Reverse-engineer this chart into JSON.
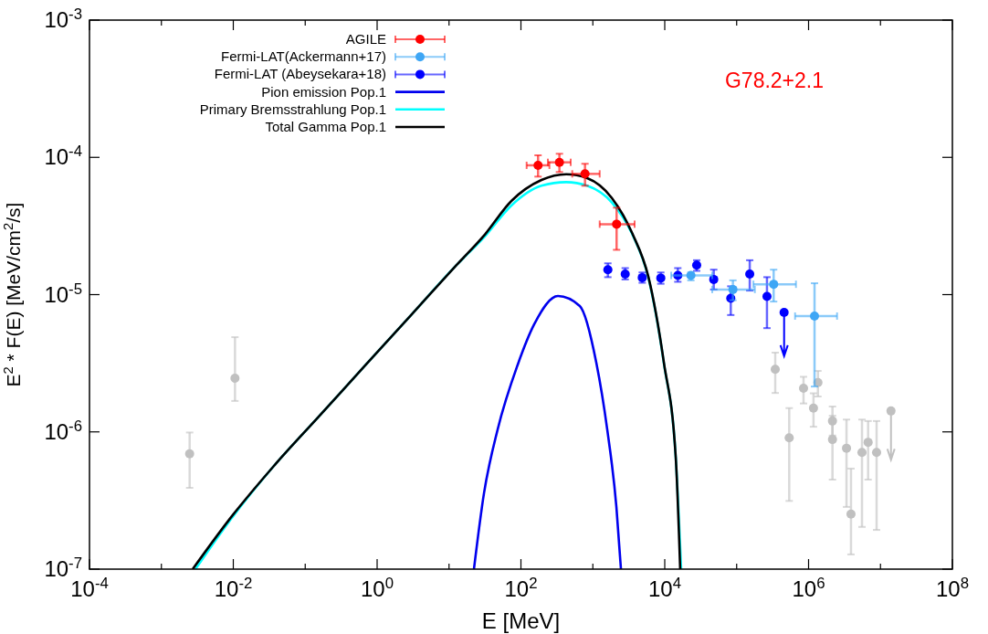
{
  "chart_data": {
    "type": "scatter",
    "xlabel": "E [MeV]",
    "ylabel": "E$^{2}$ * F(E) [MeV/cm$^{2}$/s]",
    "log": "xy",
    "xlim": [
      0.0001,
      100000000
    ],
    "ylim": [
      1e-07,
      0.001
    ],
    "xticks": [
      {
        "value": 0.0001,
        "label": "10$^{-4}$"
      },
      {
        "value": 0.001,
        "label": null
      },
      {
        "value": 0.01,
        "label": "10$^{-2}$"
      },
      {
        "value": 0.1,
        "label": null
      },
      {
        "value": 1,
        "label": "10$^{0}$"
      },
      {
        "value": 10,
        "label": null
      },
      {
        "value": 100,
        "label": "10$^{2}$"
      },
      {
        "value": 1000,
        "label": null
      },
      {
        "value": 10000,
        "label": "10$^{4}$"
      },
      {
        "value": 100000,
        "label": null
      },
      {
        "value": 1000000,
        "label": "10$^{6}$"
      },
      {
        "value": 10000000,
        "label": null
      },
      {
        "value": 100000000,
        "label": "10$^{8}$"
      }
    ],
    "yticks": [
      {
        "value": 1e-07,
        "label": "10$^{-7}$"
      },
      {
        "value": 1e-06,
        "label": "10$^{-6}$"
      },
      {
        "value": 1e-05,
        "label": "10$^{-5}$"
      },
      {
        "value": 0.0001,
        "label": "10$^{-4}$"
      },
      {
        "value": 0.001,
        "label": "10$^{-3}$"
      }
    ],
    "grid": false,
    "legend": "top left",
    "marker": "circle",
    "annotations": [
      "G78.2+2.1"
    ],
    "series": [
      {
        "name": "AGILE",
        "color": "#ff0000",
        "x": [
          173,
          343,
          778,
          2140
        ],
        "values": [
          8.75e-05,
          9.2e-05,
          7.58e-05,
          3.26e-05
        ],
        "errors": [
          [
            7.24e-05,
            0.0001035
          ],
          [
            7.82e-05,
            0.0001062
          ],
          [
            6.21e-05,
            8.98e-05
          ],
          [
            2.12e-05,
            4.3e-05
          ]
        ],
        "xerrors": [
          [
            120,
            249
          ],
          [
            237,
            492
          ],
          [
            517,
            1245
          ],
          [
            1245,
            3810
          ]
        ]
      },
      {
        "name": "Fermi-LAT(Ackermann+17)",
        "color": "#3ea6f5",
        "x": [
          23100,
          88700,
          327000,
          1210000
        ],
        "values": [
          1.38e-05,
          1.09e-05,
          1.19e-05,
          6.98e-06
        ],
        "errors": [
          [
            1.27e-05,
            1.45e-05
          ],
          [
            9.1e-06,
            1.27e-05
          ],
          [
            8.9e-06,
            1.52e-05
          ],
          [
            2.14e-06,
            1.21e-05
          ]
        ],
        "xerrors": [
          [
            12300,
            45700
          ],
          [
            45700,
            179000
          ],
          [
            171000,
            668000
          ],
          [
            649000,
            2490000
          ]
        ]
      },
      {
        "name": "Fermi-LAT (Abeysekara+18)",
        "color": "#0000ff",
        "x": [
          1618,
          2818,
          4864,
          8810,
          15200,
          27800,
          48000,
          82800,
          152000,
          264000,
          457000
        ],
        "values": [
          1.52e-05,
          1.41e-05,
          1.33e-05,
          1.32e-05,
          1.38e-05,
          1.64e-05,
          1.29e-05,
          9.4e-06,
          1.41e-05,
          9.7e-06,
          7.42e-06
        ],
        "errors": [
          [
            1.34e-05,
            1.69e-05
          ],
          [
            1.29e-05,
            1.56e-05
          ],
          [
            1.22e-05,
            1.45e-05
          ],
          [
            1.2e-05,
            1.45e-05
          ],
          [
            1.24e-05,
            1.56e-05
          ],
          [
            1.49e-05,
            1.78e-05
          ],
          [
            1.09e-05,
            1.52e-05
          ],
          [
            7.1e-06,
            1.15e-05
          ],
          [
            1.07e-05,
            1.78e-05
          ],
          [
            5.7e-06,
            1.34e-05
          ],
          [
            3.56e-06,
            7.42e-06
          ]
        ]
      },
      {
        "type": "line",
        "name": "Pion emission Pop.1",
        "color": "#0000ee",
        "marker": "none",
        "line_style": "solid",
        "x": [
          22.2,
          30.6,
          47.4,
          89.5,
          153,
          327,
          659,
          1117,
          1585,
          2125,
          2460
        ],
        "values": [
          1e-07,
          3.56e-07,
          1.04e-06,
          3.05e-06,
          6.08e-06,
          9.77e-06,
          8.26e-06,
          3.19e-06,
          1.04e-06,
          2.84e-07,
          1e-07
        ]
      },
      {
        "type": "line",
        "name": "Primary Bremsstrahlung Pop.1",
        "color": "#00ffff",
        "marker": "none",
        "line_style": "solid",
        "x": [
          0.00297,
          0.00851,
          0.0367,
          0.158,
          0.684,
          2.95,
          12.7,
          30.6,
          73.6,
          193,
          426,
          834,
          1837,
          3597,
          5916,
          9730,
          14200,
          16900
        ],
        "values": [
          1e-07,
          2.18e-07,
          5.65e-07,
          1.31e-06,
          3.05e-06,
          7.08e-06,
          1.64e-05,
          2.61e-05,
          4.46e-05,
          6.21e-05,
          6.6e-05,
          6.21e-05,
          4.69e-05,
          2.7e-05,
          1.33e-05,
          3.15e-06,
          6.59e-07,
          1e-07
        ]
      },
      {
        "type": "line",
        "name": "Total Gamma Pop.1",
        "color": "#000000",
        "marker": "none",
        "line_style": "solid",
        "x": [
          0.00272,
          0.00851,
          0.0367,
          0.158,
          0.684,
          2.95,
          12.7,
          30.6,
          73.6,
          193,
          426,
          834,
          1837,
          3597,
          5916,
          9730,
          14200,
          16400
        ],
        "values": [
          1e-07,
          2.25e-07,
          5.65e-07,
          1.31e-06,
          3.05e-06,
          7.08e-06,
          1.64e-05,
          2.69e-05,
          4.81e-05,
          6.84e-05,
          7.54e-05,
          7.06e-05,
          5.06e-05,
          2.74e-05,
          1.35e-05,
          3.19e-06,
          6.59e-07,
          1e-07
        ]
      },
      {
        "color": "#c0c0c0",
        "x": [
          0.00247,
          0.01055,
          344000,
          538000,
          851000,
          1350000,
          1170000,
          2150000,
          2150000,
          3370000,
          3890000,
          5530000,
          6730000,
          8830000,
          14000000
        ],
        "values": [
          6.93e-07,
          2.46e-06,
          2.86e-06,
          9.04e-07,
          2.08e-06,
          2.29e-06,
          1.49e-06,
          1.2e-06,
          8.8e-07,
          7.6e-07,
          2.52e-07,
          7.08e-07,
          8.4e-07,
          7.08e-07,
          1.42e-06
        ],
        "errors": [
          [
            3.91e-07,
            9.9e-07
          ],
          [
            1.68e-06,
            4.9e-06
          ],
          [
            1.92e-06,
            3.78e-06
          ],
          [
            3.14e-07,
            1.49e-06
          ],
          [
            1.61e-06,
            2.52e-06
          ],
          [
            1.81e-06,
            2.78e-06
          ],
          [
            1.09e-06,
            1.91e-06
          ],
          [
            9.4e-07,
            1.53e-06
          ],
          [
            4.49e-07,
            1.31e-06
          ],
          [
            2.84e-07,
            1.23e-06
          ],
          [
            1.28e-07,
            5.4e-07
          ],
          [
            2.03e-07,
            1.23e-06
          ],
          [
            4.49e-07,
            1.2e-06
          ],
          [
            1.93e-07,
            1.2e-06
          ],
          [
            6.26e-07,
            1.42e-06
          ]
        ]
      }
    ]
  }
}
